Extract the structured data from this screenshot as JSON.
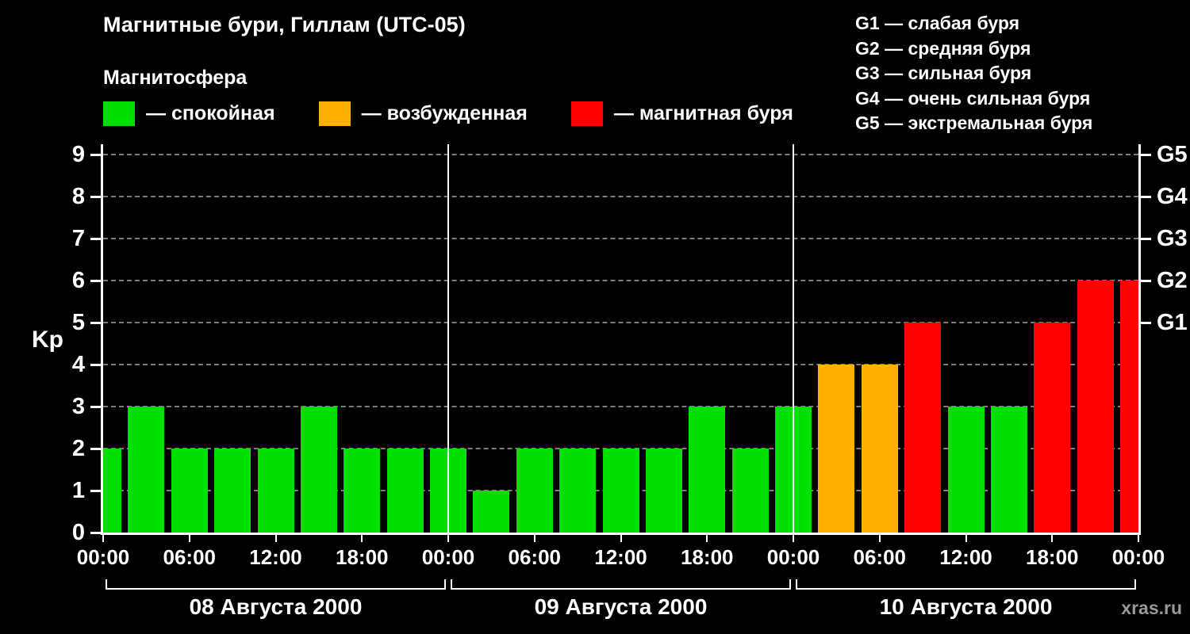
{
  "title": "Магнитные бури, Гиллам (UTC-05)",
  "watermark": "xras.ru",
  "legend": {
    "heading": "Магнитосфера",
    "items": [
      {
        "label": "— спокойная",
        "key": "quiet"
      },
      {
        "label": "— возбужденная",
        "key": "active"
      },
      {
        "label": "— магнитная буря",
        "key": "storm"
      }
    ]
  },
  "g_legend": [
    "G1 — слабая буря",
    "G2 — средняя буря",
    "G3 — сильная буря",
    "G4 — очень сильная буря",
    "G5 — экстремальная буря"
  ],
  "colors": {
    "quiet": "#00e000",
    "active": "#ffb000",
    "storm": "#ff0000",
    "axis": "#ffffff",
    "grid": "#7d7d7d",
    "background": "#000000",
    "watermark": "#999999"
  },
  "chart_data": {
    "type": "bar",
    "title": "Магнитные бури, Гиллам (UTC-05)",
    "ylabel": "Kp",
    "ylim": [
      0,
      9
    ],
    "y_ticks": [
      0,
      1,
      2,
      3,
      4,
      5,
      6,
      7,
      8,
      9
    ],
    "x_tick_labels": [
      "00:00",
      "06:00",
      "12:00",
      "18:00",
      "00:00",
      "06:00",
      "12:00",
      "18:00",
      "00:00",
      "06:00",
      "12:00",
      "18:00",
      "00:00"
    ],
    "interval_hours": 3,
    "prev_day_tail_kp": 2,
    "days": [
      {
        "date": "08 Августа 2000",
        "kp": [
          3,
          2,
          2,
          2,
          3,
          2,
          2,
          2
        ]
      },
      {
        "date": "09 Августа 2000",
        "kp": [
          1,
          2,
          2,
          2,
          2,
          3,
          2,
          3
        ]
      },
      {
        "date": "10 Августа 2000",
        "kp": [
          4,
          4,
          5,
          3,
          3,
          5,
          6,
          6
        ]
      }
    ],
    "right_axis": [
      {
        "label": "G1",
        "kp": 5
      },
      {
        "label": "G2",
        "kp": 6
      },
      {
        "label": "G3",
        "kp": 7
      },
      {
        "label": "G4",
        "kp": 8
      },
      {
        "label": "G5",
        "kp": 9
      }
    ],
    "color_rule": {
      "quiet_max": 3,
      "active_kp": 4,
      "storm_min": 5
    },
    "grid": "dashed-horizontal",
    "legend_position": "top"
  }
}
